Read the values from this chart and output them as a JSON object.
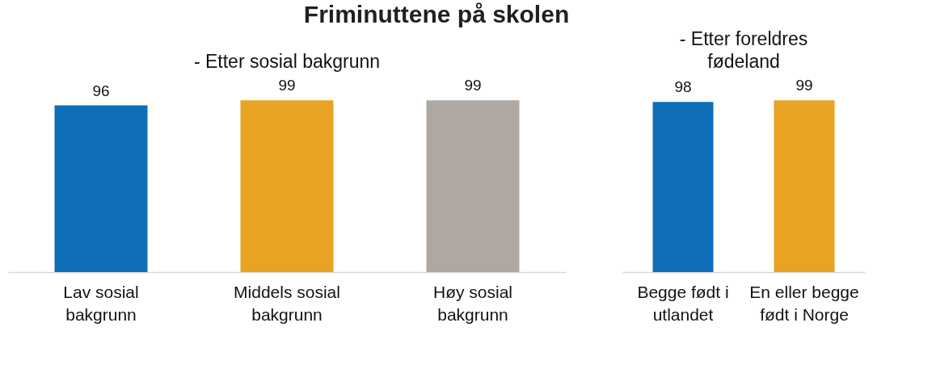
{
  "chart_data": [
    {
      "type": "bar",
      "title": "Friminuttene på skolen",
      "subtitle": "- Etter sosial bakgrunn",
      "categories": [
        "Lav sosial bakgrunn",
        "Middels sosial bakgrunn",
        "Høy sosial bakgrunn"
      ],
      "values": [
        96,
        99,
        99
      ],
      "colors": [
        "#0f6eb8",
        "#e8a323",
        "#afa7a1"
      ],
      "ylim": [
        0,
        100
      ],
      "data_labels": true,
      "tick_labels": "x"
    },
    {
      "type": "bar",
      "subtitle": "- Etter foreldres fødeland",
      "categories": [
        "Begge født i utlandet",
        "En eller begge født i Norge"
      ],
      "values": [
        98,
        99
      ],
      "colors": [
        "#0f6eb8",
        "#e8a323"
      ],
      "ylim": [
        0,
        100
      ],
      "data_labels": true,
      "tick_labels": "x"
    }
  ]
}
